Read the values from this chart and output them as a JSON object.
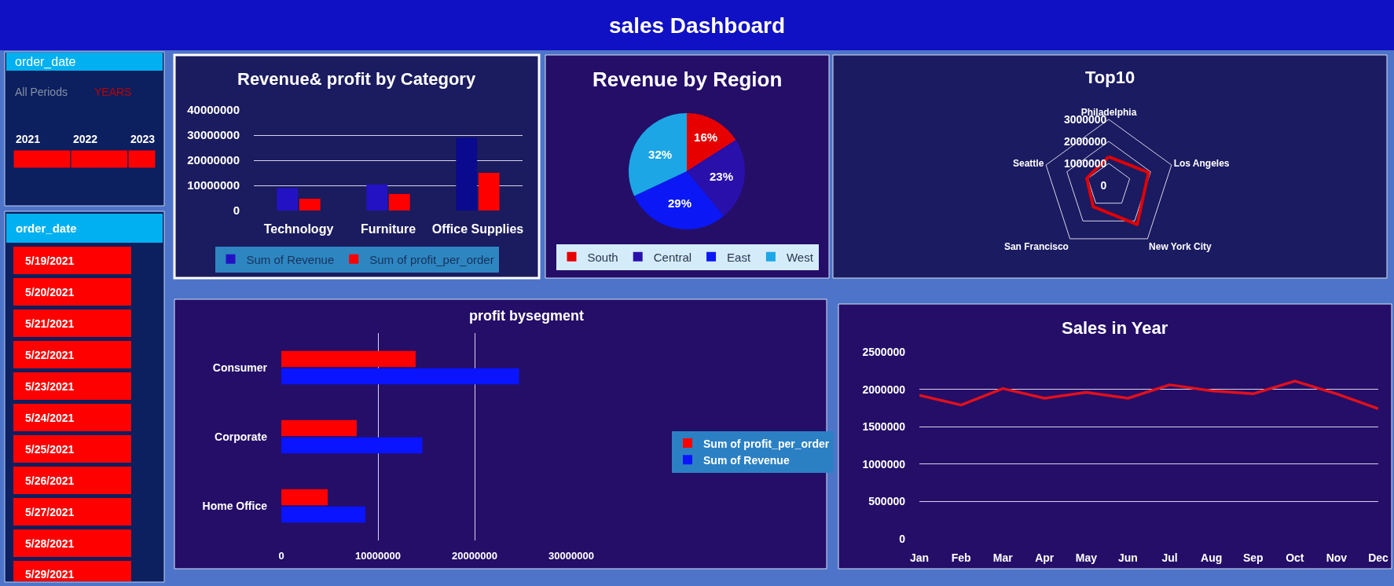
{
  "chart_data": [
    {
      "type": "other",
      "title": "sales Dashboard",
      "color": "#1010c4"
    },
    {
      "type": "other",
      "title": "order_date",
      "annotations": [
        "All Periods",
        "YEARS"
      ],
      "categories": [
        "2021",
        "2022",
        "2023"
      ],
      "color": "#ff0000"
    },
    {
      "type": "other",
      "title": "order_date",
      "categories": [
        "5/19/2021",
        "5/20/2021",
        "5/21/2021",
        "5/22/2021",
        "5/23/2021",
        "5/24/2021",
        "5/25/2021",
        "5/26/2021",
        "5/27/2021",
        "5/28/2021",
        "5/29/2021"
      ],
      "color": "#ff0000"
    },
    {
      "type": "bar",
      "title": "Revenue& profit by Category",
      "categories": [
        "Technology",
        "Furniture",
        "Office Supplies"
      ],
      "series": [
        {
          "name": "Sum of Revenue",
          "colors": [
            "#2312c4",
            "#2312c4",
            "#0a0a8e"
          ],
          "values": [
            8900000,
            10400000,
            28900000
          ]
        },
        {
          "name": "Sum of profit_per_order",
          "color": "#ff0000",
          "values": [
            4700000,
            6600000,
            15000000
          ]
        }
      ],
      "ylim": [
        0,
        40000000
      ],
      "yticks": [
        0,
        10000000,
        20000000,
        30000000,
        40000000
      ],
      "grid": "y",
      "legend": "bottom"
    },
    {
      "type": "pie",
      "title": "Revenue by Region",
      "categories": [
        "South",
        "Central",
        "East",
        "West"
      ],
      "values": [
        16,
        23,
        29,
        32
      ],
      "colors": [
        "#e60000",
        "#2a10aa",
        "#0b18f5",
        "#1ca6e6"
      ],
      "value_labels": [
        "16%",
        "23%",
        "29%",
        "32%"
      ],
      "legend": "bottom"
    },
    {
      "type": "radar",
      "title": "Top10",
      "categories": [
        "Philadelphia",
        "Los Angeles",
        "New York City",
        "San Francisco",
        "Seattle"
      ],
      "series": [
        {
          "color": "#e00000",
          "values": [
            1300000,
            1900000,
            2200000,
            1200000,
            1050000
          ]
        }
      ],
      "ylim": [
        0,
        3000000
      ],
      "yticks": [
        0,
        1000000,
        2000000,
        3000000
      ],
      "grid": true,
      "marker": "none"
    },
    {
      "type": "bar",
      "orientation": "horizontal",
      "title": "profit bysegment",
      "categories": [
        "Consumer",
        "Corporate",
        "Home Office"
      ],
      "series": [
        {
          "name": "Sum of profit_per_order",
          "color": "#ff0000",
          "values": [
            13900000,
            7800000,
            4800000
          ]
        },
        {
          "name": "Sum of Revenue",
          "color": "#0a14ff",
          "values": [
            24600000,
            14600000,
            8700000
          ]
        }
      ],
      "xlim": [
        0,
        30000000
      ],
      "xticks": [
        0,
        10000000,
        20000000,
        30000000
      ],
      "grid": "x",
      "legend": "right"
    },
    {
      "type": "line",
      "title": "Sales in Year",
      "categories": [
        "Jan",
        "Feb",
        "Mar",
        "Apr",
        "May",
        "Jun",
        "Jul",
        "Aug",
        "Sep",
        "Oct",
        "Nov",
        "Dec"
      ],
      "series": [
        {
          "color": "#e0101c",
          "values": [
            1920000,
            1790000,
            2010000,
            1880000,
            1960000,
            1880000,
            2060000,
            1980000,
            1940000,
            2110000,
            1940000,
            1740000
          ]
        }
      ],
      "ylim": [
        0,
        2500000
      ],
      "yticks": [
        0,
        500000,
        1000000,
        1500000,
        2000000,
        2500000
      ],
      "grid": "y",
      "marker": "none",
      "line_style": "solid"
    }
  ]
}
